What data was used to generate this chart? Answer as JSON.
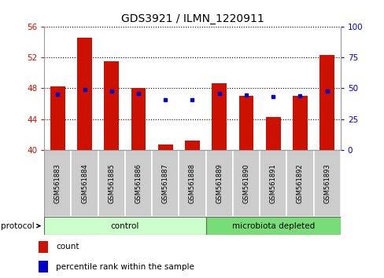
{
  "title": "GDS3921 / ILMN_1220911",
  "samples": [
    "GSM561883",
    "GSM561884",
    "GSM561885",
    "GSM561886",
    "GSM561887",
    "GSM561888",
    "GSM561889",
    "GSM561890",
    "GSM561891",
    "GSM561892",
    "GSM561893"
  ],
  "count_values": [
    48.2,
    54.5,
    51.5,
    48.0,
    40.7,
    41.2,
    48.7,
    47.0,
    44.3,
    47.0,
    52.3
  ],
  "percentile_values": [
    45.2,
    48.7,
    47.7,
    45.5,
    40.5,
    40.7,
    46.1,
    44.3,
    43.5,
    43.8,
    48.0
  ],
  "baseline": 40,
  "ylim_left": [
    40,
    56
  ],
  "ylim_right": [
    0,
    100
  ],
  "yticks_left": [
    40,
    44,
    48,
    52,
    56
  ],
  "yticks_right": [
    0,
    25,
    50,
    75,
    100
  ],
  "bar_color": "#cc1100",
  "dot_color": "#0000cc",
  "control_group_count": 6,
  "microbiota_group_count": 5,
  "control_label": "control",
  "microbiota_label": "microbiota depleted",
  "protocol_label": "protocol",
  "legend_count_label": "count",
  "legend_percentile_label": "percentile rank within the sample",
  "control_color": "#ccffcc",
  "microbiota_color": "#77dd77",
  "sample_box_color": "#cccccc",
  "bg_color": "#ffffff",
  "bar_width": 0.55,
  "title_fontsize": 10,
  "tick_fontsize": 7.5,
  "sample_label_fontsize": 6
}
